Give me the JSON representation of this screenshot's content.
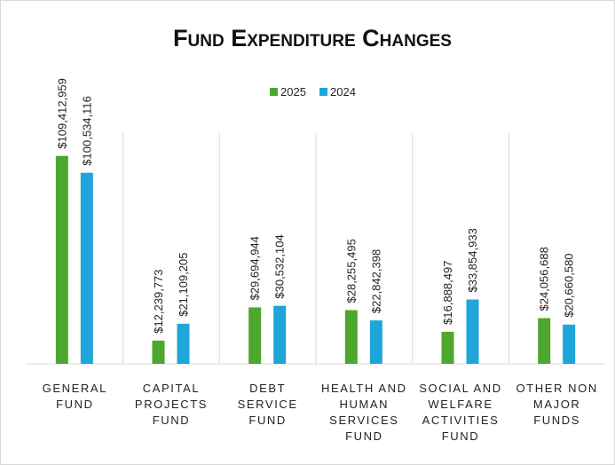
{
  "chart_data": {
    "type": "bar",
    "title": "Fund Expenditure Changes",
    "categories": [
      [
        "GENERAL",
        "FUND"
      ],
      [
        "CAPITAL",
        "PROJECTS",
        "FUND"
      ],
      [
        "DEBT",
        "SERVICE",
        "FUND"
      ],
      [
        "HEALTH AND",
        "HUMAN",
        "SERVICES",
        "FUND"
      ],
      [
        "SOCIAL AND",
        "WELFARE",
        "ACTIVITIES",
        "FUND"
      ],
      [
        "OTHER NON",
        "MAJOR",
        "FUNDS"
      ]
    ],
    "series": [
      {
        "name": "2025",
        "color": "#4ea72e",
        "values": [
          109412959,
          12239773,
          29694944,
          28255495,
          16888497,
          24056688
        ],
        "value_labels": [
          "$109,412,959",
          "$12,239,773",
          "$29,694,944",
          "$28,255,495",
          "$16,888,497",
          "$24,056,688"
        ]
      },
      {
        "name": "2024",
        "color": "#1ea5d9",
        "values": [
          100534116,
          21109205,
          30532104,
          22842398,
          33854933,
          20660580
        ],
        "value_labels": [
          "$100,534,116",
          "$21,109,205",
          "$30,532,104",
          "$22,842,398",
          "$33,854,933",
          "$20,660,580"
        ]
      }
    ],
    "ylim": [
      0,
      120000000
    ],
    "legend": "top"
  }
}
